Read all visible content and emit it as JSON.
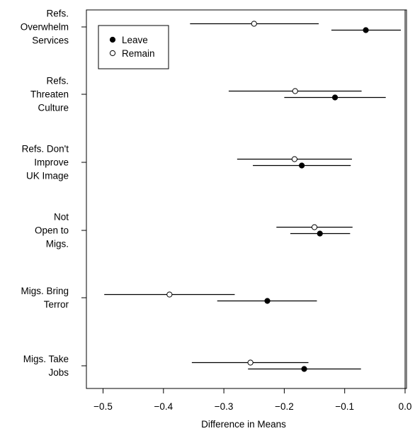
{
  "chart_data": {
    "type": "dot-and-whisker",
    "xlabel": "Difference in Means",
    "xlim": [
      -0.52,
      0.0
    ],
    "xticks": [
      -0.5,
      -0.4,
      -0.3,
      -0.2,
      -0.1,
      0.0
    ],
    "xtick_labels": [
      "−0.5",
      "−0.4",
      "−0.3",
      "−0.2",
      "−0.1",
      "0.0"
    ],
    "reference_line": 0.0,
    "grid": false,
    "legend_position": "top-left",
    "categories": [
      {
        "lines": [
          "Refs.",
          "Overwhelm",
          "Services"
        ]
      },
      {
        "lines": [
          "Refs.",
          "Threaten",
          "Culture"
        ]
      },
      {
        "lines": [
          "Refs. Don't",
          "Improve",
          "UK Image"
        ]
      },
      {
        "lines": [
          "Not",
          "Open to",
          "Migs."
        ]
      },
      {
        "lines": [
          "Migs. Bring",
          "Terror"
        ]
      },
      {
        "lines": [
          "Migs. Take",
          "Jobs"
        ]
      }
    ],
    "series": [
      {
        "name": "Leave",
        "marker": "filled-circle",
        "color": "#000000",
        "points": [
          {
            "estimate": -0.065,
            "ci_low": -0.122,
            "ci_high": -0.007
          },
          {
            "estimate": -0.116,
            "ci_low": -0.2,
            "ci_high": -0.032
          },
          {
            "estimate": -0.171,
            "ci_low": -0.252,
            "ci_high": -0.09
          },
          {
            "estimate": -0.141,
            "ci_low": -0.19,
            "ci_high": -0.091
          },
          {
            "estimate": -0.228,
            "ci_low": -0.311,
            "ci_high": -0.146
          },
          {
            "estimate": -0.167,
            "ci_low": -0.26,
            "ci_high": -0.073
          }
        ]
      },
      {
        "name": "Remain",
        "marker": "open-circle",
        "color": "#000000",
        "points": [
          {
            "estimate": -0.25,
            "ci_low": -0.356,
            "ci_high": -0.143
          },
          {
            "estimate": -0.182,
            "ci_low": -0.292,
            "ci_high": -0.072
          },
          {
            "estimate": -0.183,
            "ci_low": -0.278,
            "ci_high": -0.088
          },
          {
            "estimate": -0.15,
            "ci_low": -0.213,
            "ci_high": -0.087
          },
          {
            "estimate": -0.39,
            "ci_low": -0.498,
            "ci_high": -0.282
          },
          {
            "estimate": -0.256,
            "ci_low": -0.353,
            "ci_high": -0.16
          }
        ]
      }
    ]
  }
}
